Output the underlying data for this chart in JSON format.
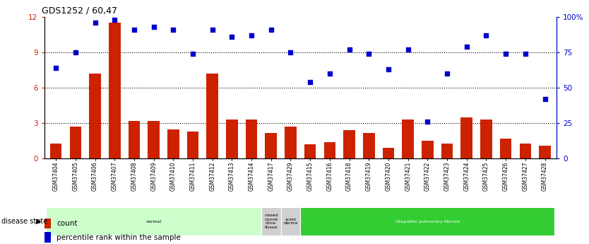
{
  "title": "GDS1252 / 60,47",
  "samples": [
    "GSM37404",
    "GSM37405",
    "GSM37406",
    "GSM37407",
    "GSM37408",
    "GSM37409",
    "GSM37410",
    "GSM37411",
    "GSM37412",
    "GSM37413",
    "GSM37414",
    "GSM37417",
    "GSM37429",
    "GSM37415",
    "GSM37416",
    "GSM37418",
    "GSM37419",
    "GSM37420",
    "GSM37421",
    "GSM37422",
    "GSM37423",
    "GSM37424",
    "GSM37425",
    "GSM37426",
    "GSM37427",
    "GSM37428"
  ],
  "counts": [
    1.3,
    2.7,
    7.2,
    11.5,
    3.2,
    3.2,
    2.5,
    2.3,
    7.2,
    3.3,
    3.3,
    2.2,
    2.7,
    1.2,
    1.4,
    2.4,
    2.2,
    0.9,
    3.3,
    1.5,
    1.3,
    3.5,
    3.3,
    1.7,
    1.3,
    1.1
  ],
  "percentile": [
    64,
    75,
    96,
    98,
    91,
    93,
    91,
    74,
    91,
    86,
    87,
    91,
    75,
    54,
    60,
    77,
    74,
    63,
    77,
    26,
    60,
    79,
    87,
    74,
    74,
    42
  ],
  "disease_groups": [
    {
      "label": "normal",
      "start": 0,
      "end": 11,
      "color": "#ccffcc",
      "text_color": "black"
    },
    {
      "label": "mixed\nconne\nctive\ntissue",
      "start": 11,
      "end": 12,
      "color": "#d0d0d0",
      "text_color": "black"
    },
    {
      "label": "scelo\nderma",
      "start": 12,
      "end": 13,
      "color": "#d0d0d0",
      "text_color": "black"
    },
    {
      "label": "idiopathic pulmonary fibrosis",
      "start": 13,
      "end": 26,
      "color": "#33cc33",
      "text_color": "white"
    }
  ],
  "bar_color": "#cc2200",
  "scatter_color": "#0000cc",
  "ylim_left": [
    0,
    12
  ],
  "ylim_right": [
    0,
    100
  ],
  "yticks_left": [
    0,
    3,
    6,
    9,
    12
  ],
  "yticks_right": [
    0,
    25,
    50,
    75,
    100
  ],
  "grid_values": [
    3,
    6,
    9
  ],
  "disease_state_label": "disease state"
}
